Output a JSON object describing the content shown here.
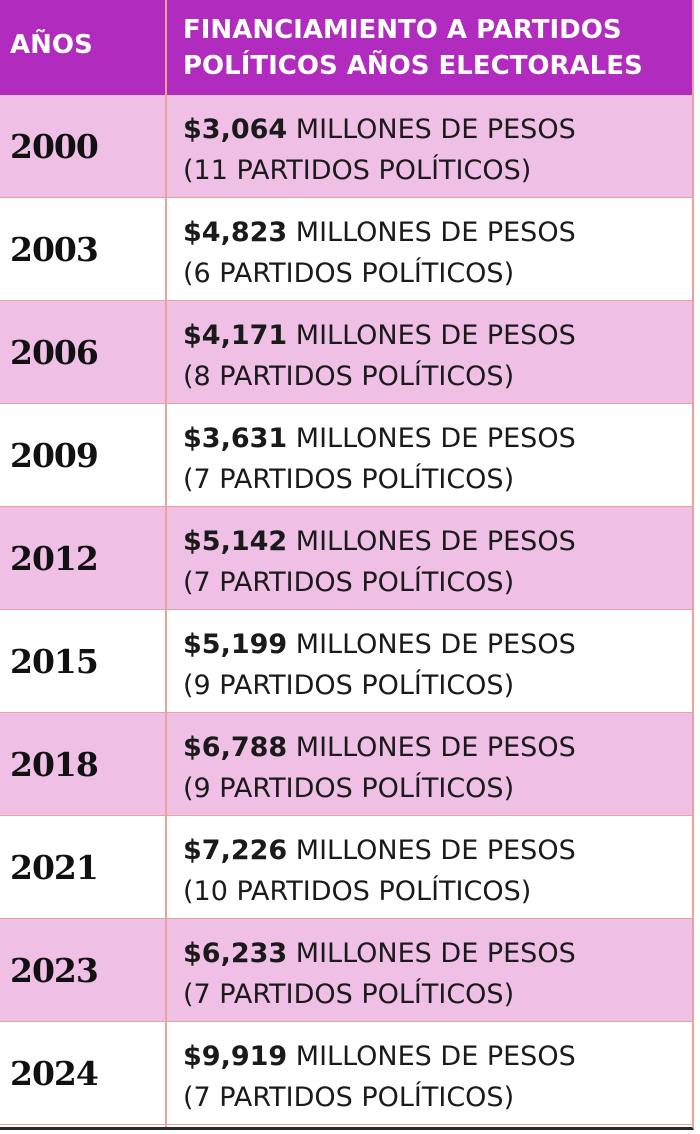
{
  "header": {
    "col_years": "AÑOS",
    "col_desc": "FINANCIAMIENTO A PARTIDOS POLÍTICOS AÑOS ELECTORALES"
  },
  "colors": {
    "header_bg": "#b12bbe",
    "row_pink": "#f0bfe6",
    "row_white": "#ffffff",
    "divider": "#e8a39a"
  },
  "chart_data": {
    "type": "table",
    "columns": [
      "AÑOS",
      "FINANCIAMIENTO A PARTIDOS POLÍTICOS AÑOS ELECTORALES"
    ],
    "rows": [
      {
        "year": "2000",
        "amount": "$3,064",
        "unit": "MILLONES DE PESOS",
        "parties": "(11 PARTIDOS POLÍTICOS)"
      },
      {
        "year": "2003",
        "amount": "$4,823",
        "unit": "MILLONES DE PESOS",
        "parties": "(6 PARTIDOS POLÍTICOS)"
      },
      {
        "year": "2006",
        "amount": "$4,171",
        "unit": "MILLONES DE PESOS",
        "parties": "(8 PARTIDOS POLÍTICOS)"
      },
      {
        "year": "2009",
        "amount": "$3,631",
        "unit": "MILLONES DE PESOS",
        "parties": "(7 PARTIDOS POLÍTICOS)"
      },
      {
        "year": "2012",
        "amount": "$5,142",
        "unit": "MILLONES DE PESOS",
        "parties": "(7 PARTIDOS POLÍTICOS)"
      },
      {
        "year": "2015",
        "amount": "$5,199",
        "unit": "MILLONES DE PESOS",
        "parties": "(9 PARTIDOS POLÍTICOS)"
      },
      {
        "year": "2018",
        "amount": "$6,788",
        "unit": "MILLONES DE PESOS",
        "parties": "(9 PARTIDOS POLÍTICOS)"
      },
      {
        "year": "2021",
        "amount": "$7,226",
        "unit": "MILLONES DE PESOS",
        "parties": "(10 PARTIDOS POLÍTICOS)"
      },
      {
        "year": "2023",
        "amount": "$6,233",
        "unit": "MILLONES DE PESOS",
        "parties": "(7 PARTIDOS POLÍTICOS)"
      },
      {
        "year": "2024",
        "amount": "$9,919",
        "unit": "MILLONES DE PESOS",
        "parties": "(7 PARTIDOS POLÍTICOS)"
      }
    ]
  }
}
